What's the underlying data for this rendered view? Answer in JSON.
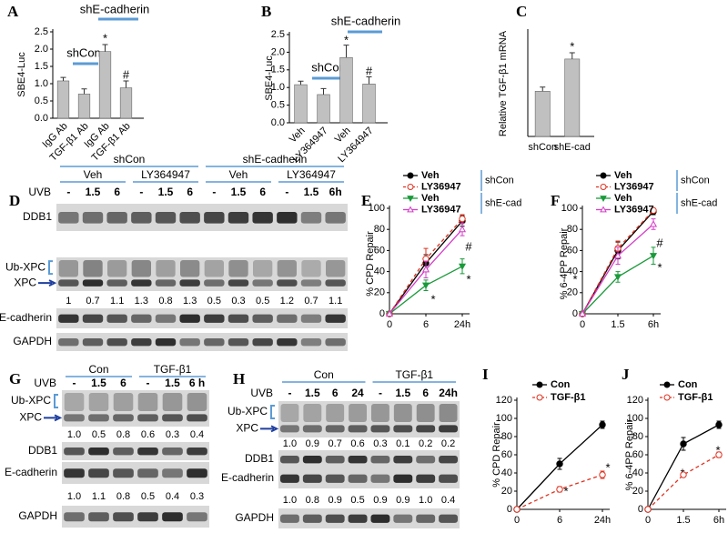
{
  "chart_data": [
    {
      "panel": "A",
      "type": "bar",
      "y_label": "SBE4-Luc",
      "categories": [
        "IgG Ab",
        "TGF-β1 Ab",
        "IgG Ab",
        "TGF-β1 Ab"
      ],
      "values": [
        1.08,
        0.7,
        1.93,
        0.88
      ],
      "errors": [
        0.1,
        0.15,
        0.2,
        0.2
      ],
      "color": "#c0c0c0",
      "ylim": [
        0,
        2.5
      ],
      "yticks": [
        {
          "value": 0,
          "label": "0.0"
        },
        0.5,
        {
          "value": 1,
          "label": "1.0"
        },
        1.5,
        {
          "value": 2,
          "label": "2.0"
        },
        2.5
      ],
      "annotations": [
        "shCon",
        "shE-cadherin",
        "*",
        "#"
      ]
    },
    {
      "panel": "B",
      "type": "bar",
      "y_label": "SBE4-Luc",
      "categories": [
        "Veh",
        "LY364947",
        "Veh",
        "LY364947"
      ],
      "values": [
        1.08,
        0.8,
        1.85,
        1.1
      ],
      "errors": [
        0.1,
        0.17,
        0.35,
        0.2
      ],
      "color": "#c0c0c0",
      "ylim": [
        0,
        2.5
      ],
      "yticks": [
        {
          "value": 0,
          "label": "0.0"
        },
        0.5,
        {
          "value": 1,
          "label": "1.0"
        },
        1.5,
        {
          "value": 2,
          "label": "2.0"
        },
        2.5
      ],
      "annotations": [
        "shCon",
        "shE-cadherin",
        "*",
        "#"
      ]
    },
    {
      "panel": "C",
      "type": "bar",
      "y_label": "Relative TGF-β1 mRNA",
      "categories": [
        "shCon",
        "shE-cad"
      ],
      "values": [
        108,
        185
      ],
      "errors": [
        10,
        15
      ],
      "color": "#c0c0c0",
      "ylim": [
        0,
        250
      ],
      "annotations": [
        "*"
      ]
    },
    {
      "panel": "E",
      "type": "line",
      "y_label": "% CPD Repair",
      "categories": [
        "0",
        "6",
        "24h"
      ],
      "ylim": [
        0,
        100
      ],
      "yticks": [
        0,
        20,
        40,
        60,
        80,
        100
      ],
      "legend_groups": [
        "shCon",
        "shE-cad"
      ],
      "series": [
        {
          "name": "Veh",
          "color": "#000000",
          "marker": "filled-circle",
          "dashed": false,
          "values": [
            0,
            48,
            88
          ],
          "errors": [
            0,
            8,
            5
          ]
        },
        {
          "name": "LY36947",
          "color": "#e0301e",
          "marker": "open-circle",
          "dashed": true,
          "values": [
            0,
            52,
            90
          ],
          "errors": [
            0,
            10,
            4
          ]
        },
        {
          "name": "Veh",
          "color": "#1a9a3a",
          "marker": "filled-triangle-down",
          "dashed": false,
          "values": [
            0,
            27,
            45
          ],
          "errors": [
            0,
            5,
            7
          ]
        },
        {
          "name": "LY36947",
          "color": "#d63cc8",
          "marker": "open-triangle",
          "dashed": false,
          "values": [
            0,
            42,
            80
          ],
          "errors": [
            0,
            8,
            6
          ]
        }
      ],
      "annotations": [
        "*",
        "*",
        "#"
      ]
    },
    {
      "panel": "F",
      "type": "line",
      "y_label": "% 6-4PP Repair",
      "categories": [
        "0",
        "1.5",
        "6h"
      ],
      "ylim": [
        0,
        100
      ],
      "yticks": [
        0,
        20,
        40,
        60,
        80,
        100
      ],
      "legend_groups": [
        "shCon",
        "shE-cad"
      ],
      "series": [
        {
          "name": "Veh",
          "color": "#000000",
          "marker": "filled-circle",
          "dashed": false,
          "values": [
            0,
            60,
            97
          ],
          "errors": [
            0,
            8,
            3
          ]
        },
        {
          "name": "LY36947",
          "color": "#e0301e",
          "marker": "open-circle",
          "dashed": true,
          "values": [
            0,
            62,
            98
          ],
          "errors": [
            0,
            7,
            2
          ]
        },
        {
          "name": "Veh",
          "color": "#1a9a3a",
          "marker": "filled-triangle-down",
          "dashed": false,
          "values": [
            0,
            35,
            55
          ],
          "errors": [
            0,
            5,
            8
          ]
        },
        {
          "name": "LY36947",
          "color": "#d63cc8",
          "marker": "open-triangle",
          "dashed": false,
          "values": [
            0,
            55,
            85
          ],
          "errors": [
            0,
            8,
            5
          ]
        }
      ],
      "annotations": [
        "*",
        "*",
        "#"
      ]
    },
    {
      "panel": "I",
      "type": "line",
      "y_label": "% CPD Repair",
      "categories": [
        "0",
        "6",
        "24h"
      ],
      "ylim": [
        0,
        120
      ],
      "yticks": [
        0,
        20,
        40,
        60,
        80,
        100,
        120
      ],
      "series": [
        {
          "name": "Con",
          "color": "#000000",
          "marker": "filled-circle",
          "dashed": false,
          "values": [
            0,
            50,
            93
          ],
          "errors": [
            0,
            6,
            4
          ]
        },
        {
          "name": "TGF-β1",
          "color": "#e0301e",
          "marker": "open-circle",
          "dashed": true,
          "values": [
            0,
            22,
            38
          ],
          "errors": [
            0,
            3,
            4
          ]
        }
      ],
      "annotations": [
        "*",
        "*"
      ]
    },
    {
      "panel": "J",
      "type": "line",
      "y_label": "% 6-4PP Repair",
      "categories": [
        "0",
        "1.5",
        "6h"
      ],
      "ylim": [
        0,
        120
      ],
      "yticks": [
        0,
        20,
        40,
        60,
        80,
        100,
        120
      ],
      "series": [
        {
          "name": "Con",
          "color": "#000000",
          "marker": "filled-circle",
          "dashed": false,
          "values": [
            0,
            72,
            93
          ],
          "errors": [
            0,
            7,
            4
          ]
        },
        {
          "name": "TGF-β1",
          "color": "#e0301e",
          "marker": "open-circle",
          "dashed": true,
          "values": [
            0,
            38,
            60
          ],
          "errors": [
            0,
            2,
            3
          ]
        }
      ],
      "annotations": [
        "*",
        "*"
      ]
    }
  ],
  "blots": [
    {
      "panel": "D",
      "groups": [
        "shCon",
        "shE-cadherin"
      ],
      "subgroups": [
        "Veh",
        "LY364947",
        "Veh",
        "LY364947"
      ],
      "uvb_label": "UVB",
      "lanes": [
        "-",
        "1.5",
        "6",
        "-",
        "1.5",
        "6",
        "-",
        "1.5",
        "6",
        "-",
        "1.5",
        "6h"
      ],
      "strips": [
        {
          "labels": [
            "DDB1"
          ]
        },
        {
          "labels": [
            "Ub-XPC",
            "XPC"
          ],
          "quant": [
            "1",
            "0.7",
            "1.1",
            "1.3",
            "0.8",
            "1.3",
            "0.5",
            "0.3",
            "0.5",
            "1.2",
            "0.7",
            "1.1"
          ]
        },
        {
          "labels": [
            "E-cadherin"
          ]
        },
        {
          "labels": [
            "GAPDH"
          ]
        }
      ]
    },
    {
      "panel": "G",
      "groups": [
        "Con",
        "TGF-β1"
      ],
      "uvb_label": "UVB",
      "lanes": [
        "-",
        "1.5",
        "6",
        "-",
        "1.5",
        "6 h"
      ],
      "strips": [
        {
          "labels": [
            "Ub-XPC",
            "XPC"
          ],
          "quant": [
            "1.0",
            "0.5",
            "0.8",
            "0.6",
            "0.3",
            "0.4"
          ]
        },
        {
          "labels": [
            "DDB1"
          ]
        },
        {
          "labels": [
            "E-cadherin"
          ],
          "quant": [
            "1.0",
            "1.1",
            "0.8",
            "0.5",
            "0.4",
            "0.3"
          ]
        },
        {
          "labels": [
            "GAPDH"
          ]
        }
      ]
    },
    {
      "panel": "H",
      "groups": [
        "Con",
        "TGF-β1"
      ],
      "uvb_label": "UVB",
      "lanes": [
        "-",
        "1.5",
        "6",
        "24",
        "-",
        "1.5",
        "6",
        "24h"
      ],
      "strips": [
        {
          "labels": [
            "Ub-XPC",
            "XPC"
          ],
          "quant": [
            "1.0",
            "0.9",
            "0.7",
            "0.6",
            "0.3",
            "0.1",
            "0.2",
            "0.2"
          ]
        },
        {
          "labels": [
            "DDB1"
          ]
        },
        {
          "labels": [
            "E-cadherin"
          ],
          "quant": [
            "1.0",
            "0.8",
            "0.9",
            "0.5",
            "0.9",
            "0.9",
            "1.0",
            "0.4"
          ]
        },
        {
          "labels": [
            "GAPDH"
          ]
        }
      ]
    }
  ]
}
